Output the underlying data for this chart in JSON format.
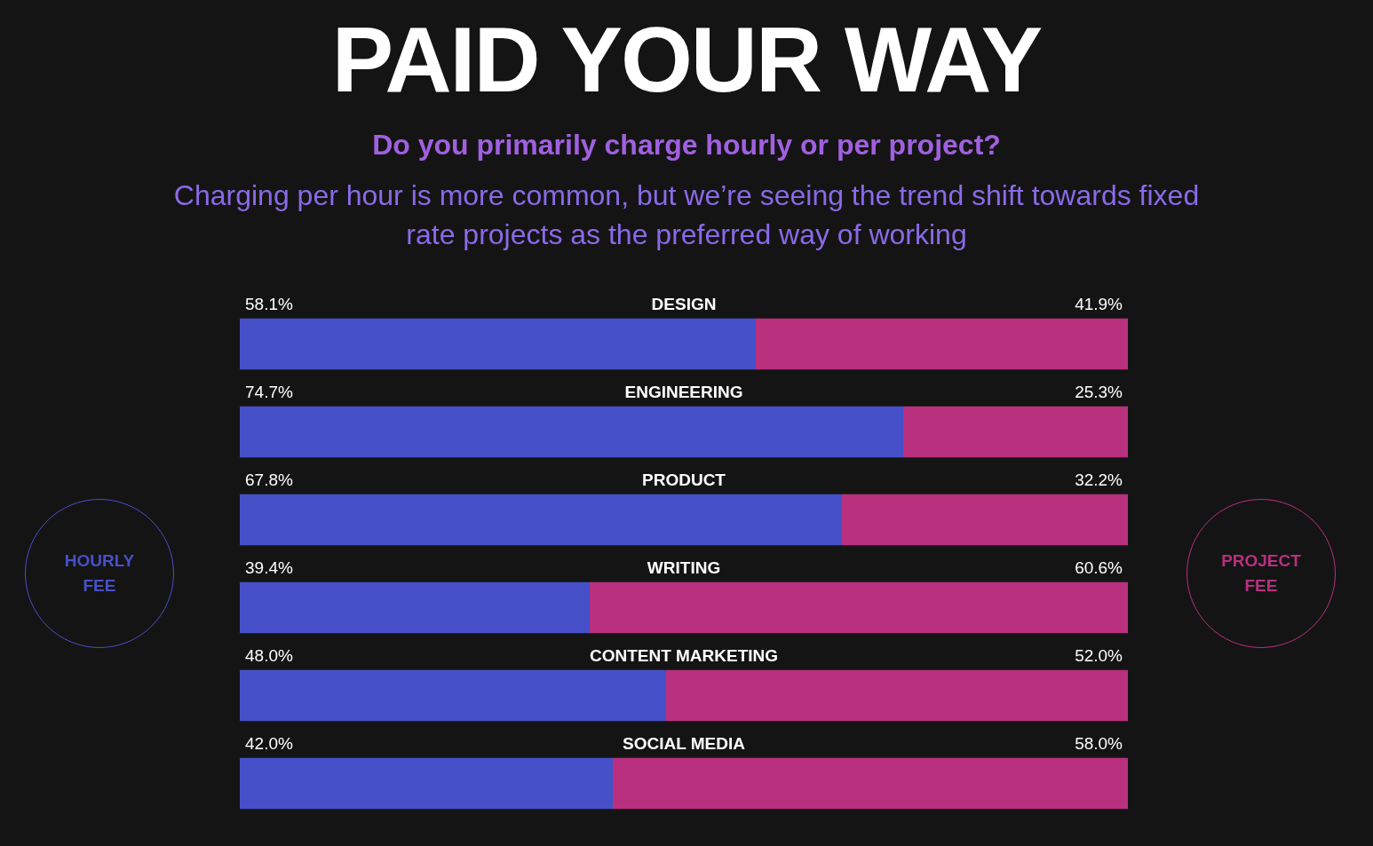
{
  "chart_data": {
    "type": "bar",
    "orientation": "horizontal",
    "stacked": true,
    "title": "PAID YOUR WAY",
    "subtitle": "Do you primarily charge hourly or per project?",
    "annotations": [
      "Charging per hour is more common, but we’re seeing the trend shift towards fixed rate projects as the preferred way of working"
    ],
    "categories": [
      "DESIGN",
      "ENGINEERING",
      "PRODUCT",
      "WRITING",
      "CONTENT MARKETING",
      "SOCIAL MEDIA"
    ],
    "series": [
      {
        "name": "HOURLY FEE",
        "color": "#4650c8",
        "values": [
          58.1,
          74.7,
          67.8,
          39.4,
          48.0,
          42.0
        ],
        "value_labels": [
          "58.1%",
          "74.7%",
          "67.8%",
          "39.4%",
          "48.0%",
          "42.0%"
        ]
      },
      {
        "name": "PROJECT FEE",
        "color": "#b8307e",
        "values": [
          41.9,
          25.3,
          32.2,
          60.6,
          52.0,
          58.0
        ],
        "value_labels": [
          "41.9%",
          "25.3%",
          "32.2%",
          "60.6%",
          "52.0%",
          "58.0%"
        ]
      }
    ],
    "xlim": [
      0,
      100
    ],
    "tick_labels": false,
    "legend": false
  }
}
